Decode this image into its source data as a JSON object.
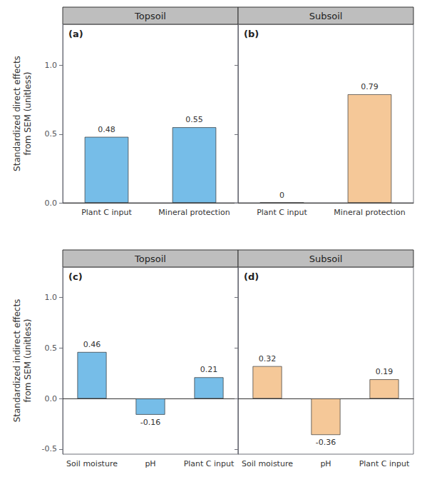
{
  "chart_data": [
    {
      "type": "bar",
      "title": "Topsoil",
      "annotation": "(a)",
      "ylabel": "Standardized direct effects\nfrom SEM (unitless)",
      "categories": [
        "Plant C input",
        "Mineral protection"
      ],
      "values": [
        0.48,
        0.55
      ],
      "color": "#76bde8",
      "ylim": [
        0.0,
        1.3
      ],
      "yticks": [
        {
          "value": 0.0,
          "label": "0.0"
        },
        0.5,
        {
          "value": 1.0,
          "label": "1.0"
        }
      ],
      "grid": false,
      "data_labels": true
    },
    {
      "type": "bar",
      "title": "Subsoil",
      "annotation": "(b)",
      "categories": [
        "Plant C input",
        "Mineral protection"
      ],
      "values": [
        0.0,
        0.79
      ],
      "color": "#f5c898",
      "ylim": [
        0.0,
        1.3
      ],
      "yticks": [
        {
          "value": 0.0,
          "label": "0.0"
        },
        0.5,
        {
          "value": 1.0,
          "label": "1.0"
        }
      ],
      "grid": false,
      "data_labels": true,
      "tick_labels": "x"
    },
    {
      "type": "bar",
      "title": "Topsoil",
      "annotation": "(c)",
      "ylabel": "Standardized indirect effects\nfrom SEM (unitless)",
      "categories": [
        "Soil moisture",
        "pH",
        "Plant C input"
      ],
      "values": [
        0.46,
        -0.16,
        0.21
      ],
      "color": "#76bde8",
      "ylim": [
        -0.55,
        1.3
      ],
      "yticks": [
        -0.5,
        {
          "value": 0.0,
          "label": "0.0"
        },
        0.5,
        {
          "value": 1.0,
          "label": "1.0"
        }
      ],
      "grid": false,
      "data_labels": true
    },
    {
      "type": "bar",
      "title": "Subsoil",
      "annotation": "(d)",
      "categories": [
        "Soil moisture",
        "pH",
        "Plant C input"
      ],
      "values": [
        0.32,
        -0.36,
        0.19
      ],
      "color": "#f5c898",
      "ylim": [
        -0.55,
        1.3
      ],
      "yticks": [
        -0.5,
        {
          "value": 0.0,
          "label": "0.0"
        },
        0.5,
        {
          "value": 1.0,
          "label": "1.0"
        }
      ],
      "grid": false,
      "data_labels": true,
      "tick_labels": "x"
    }
  ]
}
